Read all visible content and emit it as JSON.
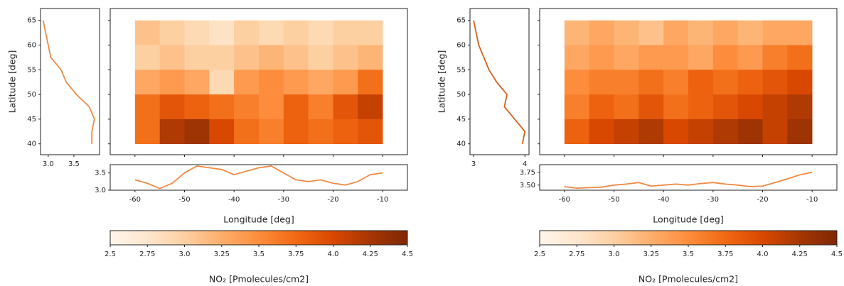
{
  "chart_data": [
    {
      "type": "heatmap",
      "xlabel": "Longitude [deg]",
      "ylabel": "Latitude [deg]",
      "x": [
        -57.5,
        -52.5,
        -47.5,
        -42.5,
        -37.5,
        -32.5,
        -27.5,
        -22.5,
        -17.5,
        -12.5
      ],
      "y": [
        62.5,
        57.5,
        52.5,
        47.5,
        42.5
      ],
      "values": [
        [
          3.1,
          3.0,
          2.9,
          2.8,
          3.0,
          2.9,
          3.0,
          2.9,
          3.0,
          3.0
        ],
        [
          3.0,
          3.1,
          3.0,
          3.0,
          3.1,
          3.2,
          3.1,
          3.0,
          3.1,
          3.2
        ],
        [
          3.3,
          3.4,
          3.3,
          2.9,
          3.4,
          3.5,
          3.4,
          3.3,
          3.4,
          3.7
        ],
        [
          3.7,
          3.9,
          3.8,
          3.7,
          3.6,
          3.5,
          3.8,
          3.6,
          3.9,
          4.1
        ],
        [
          3.7,
          4.2,
          4.3,
          4.0,
          3.7,
          3.6,
          3.8,
          3.7,
          3.8,
          3.9
        ]
      ],
      "xlim": [
        -65,
        -5
      ],
      "ylim": [
        37.8,
        67.4
      ],
      "xticks": [
        -60,
        -50,
        -40,
        -30,
        -20,
        -10
      ],
      "yticks": [
        40,
        45,
        50,
        55,
        60,
        65
      ],
      "colormap": [
        "#fff5eb",
        "#fee6ce",
        "#fdd0a2",
        "#fdae6b",
        "#fd8d3c",
        "#f16913",
        "#d94801",
        "#a63603",
        "#7f2704"
      ],
      "clim": [
        2.5,
        4.5
      ],
      "colorbar": {
        "label": "NO₂ [Pmolecules/cm2]",
        "ticks": [
          2.5,
          2.75,
          {
            "value": 3,
            "label": "3.0"
          },
          3.25,
          3.5,
          3.75,
          {
            "value": 4,
            "label": "4.0"
          },
          4.25,
          4.5
        ]
      },
      "lat_profile": {
        "type": "line",
        "color": "#ee8a45",
        "lat": [
          40,
          42.5,
          45,
          47.5,
          50,
          52.5,
          55,
          57.5,
          60,
          62.5,
          65
        ],
        "values": [
          3.85,
          3.85,
          3.9,
          3.8,
          3.55,
          3.35,
          3.25,
          3.05,
          3.0,
          2.95,
          2.9
        ],
        "xlim": [
          2.85,
          4.0
        ],
        "xticks": [
          {
            "value": 3,
            "label": "3.0"
          },
          3.5
        ]
      },
      "lon_profile": {
        "type": "line",
        "color": "#ee8a45",
        "x": [
          -60,
          -57.5,
          -55,
          -52.5,
          -50,
          -47.5,
          -45,
          -42.5,
          -40,
          -37.5,
          -35,
          -32.5,
          -30,
          -27.5,
          -25,
          -22.5,
          -20,
          -17.5,
          -15,
          -12.5,
          -10
        ],
        "values": [
          3.3,
          3.2,
          3.05,
          3.2,
          3.5,
          3.7,
          3.65,
          3.6,
          3.45,
          3.55,
          3.65,
          3.7,
          3.5,
          3.3,
          3.25,
          3.3,
          3.2,
          3.15,
          3.25,
          3.45,
          3.5
        ],
        "ylim": [
          3.0,
          3.74
        ],
        "yticks": [
          {
            "value": 3,
            "label": "3.0"
          },
          3.5
        ]
      }
    },
    {
      "type": "heatmap",
      "xlabel": "Longitude [deg]",
      "ylabel": "Latitude [deg]",
      "x": [
        -57.5,
        -52.5,
        -47.5,
        -42.5,
        -37.5,
        -32.5,
        -27.5,
        -22.5,
        -17.5,
        -12.5
      ],
      "y": [
        62.5,
        57.5,
        52.5,
        47.5,
        42.5
      ],
      "values": [
        [
          3.2,
          3.3,
          3.2,
          3.1,
          3.3,
          3.2,
          3.3,
          3.2,
          3.3,
          3.3
        ],
        [
          3.3,
          3.4,
          3.3,
          3.4,
          3.4,
          3.3,
          3.5,
          3.4,
          3.6,
          3.7
        ],
        [
          3.5,
          3.6,
          3.6,
          3.7,
          3.6,
          3.8,
          3.7,
          3.8,
          3.9,
          4.0
        ],
        [
          3.6,
          3.8,
          3.7,
          3.9,
          3.7,
          3.8,
          3.9,
          4.0,
          4.1,
          4.2
        ],
        [
          3.8,
          4.0,
          4.1,
          4.2,
          4.0,
          4.1,
          4.2,
          4.3,
          4.1,
          4.3
        ]
      ],
      "xlim": [
        -65,
        -5
      ],
      "ylim": [
        37.8,
        67.4
      ],
      "xticks": [
        -60,
        -50,
        -40,
        -30,
        -20,
        -10
      ],
      "yticks": [
        40,
        45,
        50,
        55,
        60,
        65
      ],
      "colormap": [
        "#fff5eb",
        "#fee6ce",
        "#fdd0a2",
        "#fdae6b",
        "#fd8d3c",
        "#f16913",
        "#d94801",
        "#a63603",
        "#7f2704"
      ],
      "clim": [
        2.5,
        4.5
      ],
      "colorbar": {
        "label": "NO₂ [Pmolecules/cm2]",
        "ticks": [
          2.5,
          2.75,
          {
            "value": 3,
            "label": "3.0"
          },
          3.25,
          3.5,
          3.75,
          {
            "value": 4,
            "label": "4.0"
          },
          4.25,
          4.5
        ]
      },
      "lat_profile": {
        "type": "line",
        "color": "#d9601a",
        "lat": [
          40,
          42.5,
          45,
          47.5,
          50,
          52.5,
          55,
          57.5,
          60,
          62.5,
          65
        ],
        "values": [
          3.95,
          4.0,
          3.8,
          3.6,
          3.65,
          3.45,
          3.3,
          3.2,
          3.1,
          3.05,
          3.0
        ],
        "xlim": [
          2.93,
          4.08
        ],
        "xticks": [
          3,
          4
        ]
      },
      "lon_profile": {
        "type": "line",
        "color": "#ee8a45",
        "x": [
          -60,
          -57.5,
          -55,
          -52.5,
          -50,
          -47.5,
          -45,
          -42.5,
          -40,
          -37.5,
          -35,
          -32.5,
          -30,
          -27.5,
          -25,
          -22.5,
          -20,
          -17.5,
          -15,
          -12.5,
          -10
        ],
        "values": [
          3.47,
          3.44,
          3.45,
          3.46,
          3.5,
          3.52,
          3.55,
          3.48,
          3.5,
          3.52,
          3.5,
          3.53,
          3.55,
          3.52,
          3.5,
          3.47,
          3.48,
          3.55,
          3.62,
          3.7,
          3.75
        ],
        "ylim": [
          3.4,
          3.9
        ],
        "yticks": [
          {
            "value": 3.5,
            "label": "3.50"
          },
          {
            "value": 3.75,
            "label": "3.75"
          }
        ]
      }
    }
  ]
}
